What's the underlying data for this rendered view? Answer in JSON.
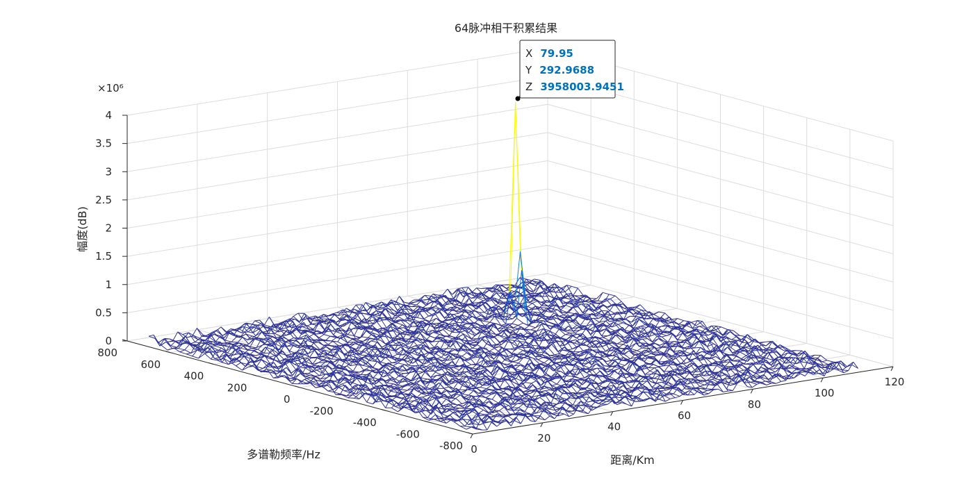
{
  "chart_data": {
    "type": "surface",
    "title": "64脉冲相干积累结果",
    "xlabel": "距离/Km",
    "ylabel": "多谱勒频率/Hz",
    "zlabel": "幅度(dB)",
    "z_exponent_label": "×10⁶",
    "xlim": [
      0,
      120
    ],
    "ylim": [
      -800,
      800
    ],
    "zlim": [
      0,
      4
    ],
    "x_data_range": [
      0,
      110
    ],
    "y_data_range": [
      -800,
      700
    ],
    "x_ticks": [
      0,
      20,
      40,
      60,
      80,
      100,
      120
    ],
    "x_tick_labels": [
      "0",
      "20",
      "40",
      "60",
      "80",
      "100",
      "120"
    ],
    "y_ticks": [
      -800,
      -600,
      -400,
      -200,
      0,
      200,
      400,
      600,
      800
    ],
    "y_tick_labels": [
      "-800",
      "-600",
      "-400",
      "-200",
      "0",
      "200",
      "400",
      "600",
      "800"
    ],
    "z_ticks": [
      0,
      0.5,
      1,
      1.5,
      2,
      2.5,
      3,
      3.5,
      4
    ],
    "z_tick_labels": [
      "0",
      "0.5",
      "1",
      "1.5",
      "2",
      "2.5",
      "3",
      "3.5",
      "4"
    ],
    "grid": true,
    "colormap": "parula",
    "noise_floor_approx": 0.2,
    "peak": {
      "x": 79.95,
      "y": 292.9688,
      "z": 3.9580039451
    },
    "datatip": {
      "x_key": "X",
      "x_value": "79.95",
      "y_key": "Y",
      "y_value": "292.9688",
      "z_key": "Z",
      "z_value": "3958003.9451"
    }
  }
}
